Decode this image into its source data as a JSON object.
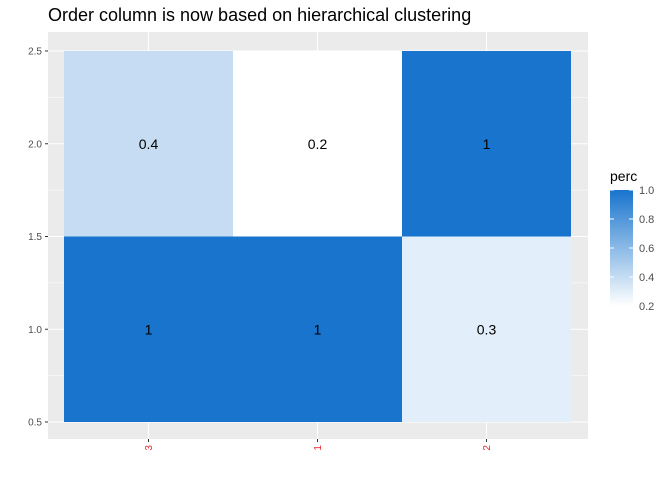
{
  "chart_data": {
    "type": "heatmap",
    "title": "Order column is now based on hierarchical clustering",
    "xlabel": "",
    "ylabel": "",
    "x_categories": [
      "3",
      "1",
      "2"
    ],
    "y_values": [
      1,
      2
    ],
    "ylim": [
      0.5,
      2.5
    ],
    "y_ticks": [
      "0.5",
      "1.0",
      "1.5",
      "2.0",
      "2.5"
    ],
    "cells": [
      {
        "x": "3",
        "y": 2,
        "value": 0.4,
        "label": "0.4"
      },
      {
        "x": "1",
        "y": 2,
        "value": 0.2,
        "label": "0.2"
      },
      {
        "x": "2",
        "y": 2,
        "value": 1,
        "label": "1"
      },
      {
        "x": "3",
        "y": 1,
        "value": 1,
        "label": "1"
      },
      {
        "x": "1",
        "y": 1,
        "value": 1,
        "label": "1"
      },
      {
        "x": "2",
        "y": 1,
        "value": 0.3,
        "label": "0.3"
      }
    ],
    "legend": {
      "title": "perc",
      "placement": "right",
      "low": 0.2,
      "high": 1.0,
      "ticks": [
        "0.2",
        "0.4",
        "0.6",
        "0.8",
        "1.0"
      ],
      "low_color": "#ffffff",
      "high_color": "#1874cd"
    },
    "grid": true,
    "colors": {
      "panel_background": "#ebebeb",
      "grid_line": "#ffffff",
      "x_tick_label": "#e8262b"
    }
  }
}
